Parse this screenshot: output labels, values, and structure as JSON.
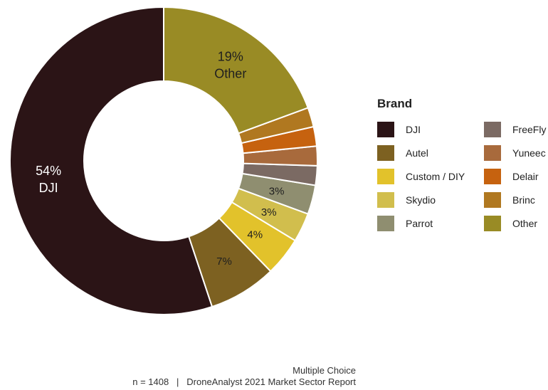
{
  "chart_data": {
    "type": "pie",
    "donut": true,
    "categories": [
      "DJI",
      "Autel",
      "Custom / DIY",
      "Skydio",
      "Parrot",
      "FreeFly",
      "Yuneec",
      "Delair",
      "Brinc",
      "Other"
    ],
    "values": [
      54,
      7,
      4,
      3,
      3,
      2,
      2,
      2,
      2,
      19
    ],
    "colors": [
      "#2b1416",
      "#7d6121",
      "#e2c22b",
      "#d1be4d",
      "#8f8e70",
      "#7b6a63",
      "#a86a3c",
      "#c6620f",
      "#b07820",
      "#998b25"
    ],
    "slice_labels": [
      "54%\nDJI",
      "7%",
      "4%",
      "3%",
      "3%",
      "",
      "",
      "",
      "",
      "19%\nOther"
    ],
    "legend_title": "Brand",
    "legend_position": "right"
  },
  "legend": {
    "title": "Brand",
    "items": [
      {
        "label": "DJI",
        "color": "#2b1416"
      },
      {
        "label": "FreeFly",
        "color": "#7b6a63"
      },
      {
        "label": "Autel",
        "color": "#7d6121"
      },
      {
        "label": "Yuneec",
        "color": "#a86a3c"
      },
      {
        "label": "Custom / DIY",
        "color": "#e2c22b"
      },
      {
        "label": "Delair",
        "color": "#c6620f"
      },
      {
        "label": "Skydio",
        "color": "#d1be4d"
      },
      {
        "label": "Brinc",
        "color": "#b07820"
      },
      {
        "label": "Parrot",
        "color": "#8f8e70"
      },
      {
        "label": "Other",
        "color": "#998b25"
      }
    ]
  },
  "caption": {
    "line1": "Multiple Choice",
    "line2": "n = 1408   |   DroneAnalyst 2021 Market Sector Report"
  }
}
